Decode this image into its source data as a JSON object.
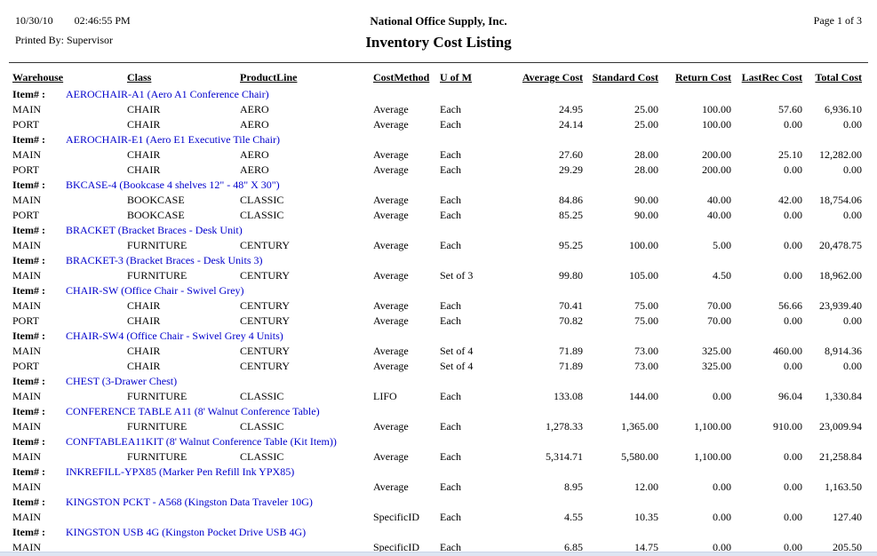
{
  "report": {
    "date": "10/30/10",
    "time": "02:46:55 PM",
    "printed_by": "Printed By: Supervisor",
    "company": "National Office Supply, Inc.",
    "title": "Inventory Cost Listing",
    "page": "Page 1 of 3"
  },
  "colors": {
    "link_blue": "#0000CC",
    "rule": "#333333",
    "bottom_strip": "#dde5f2"
  },
  "table": {
    "item_label": "Item# :",
    "columns": [
      {
        "key": "warehouse",
        "label": "Warehouse",
        "align": "left"
      },
      {
        "key": "class",
        "label": "Class",
        "align": "left"
      },
      {
        "key": "product-line",
        "label": "ProductLine",
        "align": "left"
      },
      {
        "key": "cost-method",
        "label": "CostMethod",
        "align": "left"
      },
      {
        "key": "uofm",
        "label": "U of M",
        "align": "left"
      },
      {
        "key": "average-cost",
        "label": "Average Cost",
        "align": "right"
      },
      {
        "key": "standard-cost",
        "label": "Standard Cost",
        "align": "right"
      },
      {
        "key": "return-cost",
        "label": "Return Cost",
        "align": "right"
      },
      {
        "key": "lastrec-cost",
        "label": "LastRec Cost",
        "align": "right"
      },
      {
        "key": "total-cost",
        "label": "Total Cost",
        "align": "right"
      }
    ],
    "groups": [
      {
        "item": "AEROCHAIR-A1 (Aero A1 Conference Chair)",
        "rows": [
          [
            "MAIN",
            "CHAIR",
            "AERO",
            "Average",
            "Each",
            "24.95",
            "25.00",
            "100.00",
            "57.60",
            "6,936.10"
          ],
          [
            "PORT",
            "CHAIR",
            "AERO",
            "Average",
            "Each",
            "24.14",
            "25.00",
            "100.00",
            "0.00",
            "0.00"
          ]
        ]
      },
      {
        "item": "AEROCHAIR-E1 (Aero E1 Executive Tile Chair)",
        "rows": [
          [
            "MAIN",
            "CHAIR",
            "AERO",
            "Average",
            "Each",
            "27.60",
            "28.00",
            "200.00",
            "25.10",
            "12,282.00"
          ],
          [
            "PORT",
            "CHAIR",
            "AERO",
            "Average",
            "Each",
            "29.29",
            "28.00",
            "200.00",
            "0.00",
            "0.00"
          ]
        ]
      },
      {
        "item": "BKCASE-4 (Bookcase 4 shelves 12\" - 48\" X 30\")",
        "rows": [
          [
            "MAIN",
            "BOOKCASE",
            "CLASSIC",
            "Average",
            "Each",
            "84.86",
            "90.00",
            "40.00",
            "42.00",
            "18,754.06"
          ],
          [
            "PORT",
            "BOOKCASE",
            "CLASSIC",
            "Average",
            "Each",
            "85.25",
            "90.00",
            "40.00",
            "0.00",
            "0.00"
          ]
        ]
      },
      {
        "item": "BRACKET (Bracket Braces - Desk Unit)",
        "rows": [
          [
            "MAIN",
            "FURNITURE",
            "CENTURY",
            "Average",
            "Each",
            "95.25",
            "100.00",
            "5.00",
            "0.00",
            "20,478.75"
          ]
        ]
      },
      {
        "item": "BRACKET-3 (Bracket Braces - Desk Units 3)",
        "rows": [
          [
            "MAIN",
            "FURNITURE",
            "CENTURY",
            "Average",
            "Set of 3",
            "99.80",
            "105.00",
            "4.50",
            "0.00",
            "18,962.00"
          ]
        ]
      },
      {
        "item": "CHAIR-SW (Office Chair - Swivel Grey)",
        "rows": [
          [
            "MAIN",
            "CHAIR",
            "CENTURY",
            "Average",
            "Each",
            "70.41",
            "75.00",
            "70.00",
            "56.66",
            "23,939.40"
          ],
          [
            "PORT",
            "CHAIR",
            "CENTURY",
            "Average",
            "Each",
            "70.82",
            "75.00",
            "70.00",
            "0.00",
            "0.00"
          ]
        ]
      },
      {
        "item": "CHAIR-SW4 (Office Chair - Swivel Grey 4 Units)",
        "rows": [
          [
            "MAIN",
            "CHAIR",
            "CENTURY",
            "Average",
            "Set of 4",
            "71.89",
            "73.00",
            "325.00",
            "460.00",
            "8,914.36"
          ],
          [
            "PORT",
            "CHAIR",
            "CENTURY",
            "Average",
            "Set of 4",
            "71.89",
            "73.00",
            "325.00",
            "0.00",
            "0.00"
          ]
        ]
      },
      {
        "item": "CHEST (3-Drawer Chest)",
        "rows": [
          [
            "MAIN",
            "FURNITURE",
            "CLASSIC",
            "LIFO",
            "Each",
            "133.08",
            "144.00",
            "0.00",
            "96.04",
            "1,330.84"
          ]
        ]
      },
      {
        "item": "CONFERENCE TABLE A11 (8' Walnut Conference Table)",
        "rows": [
          [
            "MAIN",
            "FURNITURE",
            "CLASSIC",
            "Average",
            "Each",
            "1,278.33",
            "1,365.00",
            "1,100.00",
            "910.00",
            "23,009.94"
          ]
        ]
      },
      {
        "item": "CONFTABLEA11KIT (8' Walnut Conference Table (Kit Item))",
        "rows": [
          [
            "MAIN",
            "FURNITURE",
            "CLASSIC",
            "Average",
            "Each",
            "5,314.71",
            "5,580.00",
            "1,100.00",
            "0.00",
            "21,258.84"
          ]
        ]
      },
      {
        "item": "INKREFILL-YPX85 (Marker Pen Refill Ink YPX85)",
        "rows": [
          [
            "MAIN",
            "",
            "",
            "Average",
            "Each",
            "8.95",
            "12.00",
            "0.00",
            "0.00",
            "1,163.50"
          ]
        ]
      },
      {
        "item": "KINGSTON PCKT - A568 (Kingston Data Traveler 10G)",
        "rows": [
          [
            "MAIN",
            "",
            "",
            "SpecificID",
            "Each",
            "4.55",
            "10.35",
            "0.00",
            "0.00",
            "127.40"
          ]
        ]
      },
      {
        "item": "KINGSTON USB 4G (Kingston Pocket Drive USB 4G)",
        "rows": [
          [
            "MAIN",
            "",
            "",
            "SpecificID",
            "Each",
            "6.85",
            "14.75",
            "0.00",
            "0.00",
            "205.50"
          ]
        ]
      }
    ]
  }
}
